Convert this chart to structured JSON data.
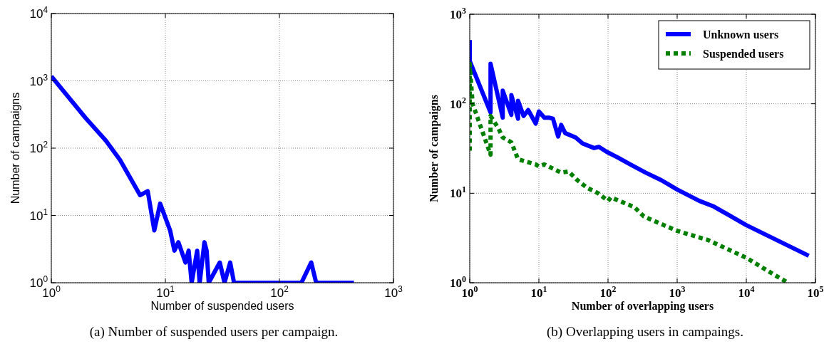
{
  "chart_data": [
    {
      "type": "line",
      "xlabel": "Number of suspended users",
      "ylabel": "Number of campaigns",
      "log": "xy",
      "grid": true,
      "xlim": [
        1,
        1000
      ],
      "ylim": [
        1,
        10000
      ],
      "xticks": [
        {
          "value": 1,
          "label": "10$^{0}$"
        },
        {
          "value": 10,
          "label": "10$^{1}$"
        },
        {
          "value": 100,
          "label": "10$^{2}$"
        },
        {
          "value": 1000,
          "label": "10$^{3}$"
        }
      ],
      "yticks": [
        {
          "value": 1,
          "label": "10$^{0}$"
        },
        {
          "value": 10,
          "label": "10$^{1}$"
        },
        {
          "value": 100,
          "label": "10$^{2}$"
        },
        {
          "value": 1000,
          "label": "10$^{3}$"
        },
        {
          "value": 10000,
          "label": "10$^{4}$"
        }
      ],
      "annotations": [
        "(a) Number of suspended users per campaign."
      ],
      "series": [
        {
          "color": "#0000ff",
          "line_style": "solid",
          "x": [
            1,
            2,
            3,
            4,
            6,
            7,
            8,
            9,
            11,
            12,
            13,
            15,
            16,
            17,
            19,
            20,
            22,
            23,
            24,
            30,
            33,
            37,
            40,
            156,
            190,
            210,
            450
          ],
          "values": [
            1170,
            280,
            130,
            67,
            20,
            23,
            6,
            15,
            6,
            3,
            4,
            2,
            3,
            1,
            3,
            1,
            4,
            3,
            1,
            2,
            1,
            2,
            1,
            1,
            2,
            1,
            1
          ]
        }
      ]
    },
    {
      "type": "line",
      "xlabel": "Number of overlapping users",
      "ylabel": "Number of campaigns",
      "log": "xy",
      "grid": true,
      "legend": "top right",
      "xlim": [
        1,
        100000
      ],
      "ylim": [
        1,
        1000
      ],
      "xticks": [
        {
          "value": 1,
          "label": "10$^{0}$"
        },
        {
          "value": 10,
          "label": "10$^{1}$"
        },
        {
          "value": 100,
          "label": "10$^{2}$"
        },
        {
          "value": 1000,
          "label": "10$^{3}$"
        },
        {
          "value": 10000,
          "label": "10$^{4}$"
        },
        {
          "value": 100000,
          "label": "10$^{5}$"
        }
      ],
      "yticks": [
        {
          "value": 1,
          "label": "10$^{0}$"
        },
        {
          "value": 10,
          "label": "10$^{1}$"
        },
        {
          "value": 100,
          "label": "10$^{2}$"
        },
        {
          "value": 1000,
          "label": "10$^{3}$"
        }
      ],
      "annotations": [
        "(b) Overlapping users in campaings."
      ],
      "series": [
        {
          "name": "Unknown users",
          "color": "#0000ff",
          "line_style": "solid",
          "x": [
            1,
            1,
            2,
            2,
            3,
            3,
            4,
            4,
            5,
            5,
            6,
            7,
            9,
            10,
            12,
            14,
            16,
            19,
            21,
            24,
            34,
            43,
            63,
            74,
            96,
            140,
            210,
            350,
            590,
            1000,
            2100,
            3400,
            10000,
            80000
          ],
          "values": [
            515,
            300,
            80,
            280,
            70,
            140,
            75,
            125,
            68,
            108,
            73,
            85,
            60,
            82,
            70,
            70,
            68,
            43,
            58,
            47,
            42,
            36,
            32,
            33,
            29,
            25,
            21,
            17,
            14,
            11,
            8.2,
            7.1,
            4.4,
            2
          ]
        },
        {
          "name": "Suspended users",
          "color": "#007f00",
          "line_style": "dashed",
          "x": [
            1,
            1,
            1.1,
            2,
            2,
            2.6,
            3,
            4,
            5,
            6,
            9,
            10,
            12,
            21,
            27,
            36,
            50,
            72,
            100,
            110,
            240,
            330,
            1000,
            2800,
            10000,
            24000,
            40000
          ],
          "values": [
            30,
            280,
            100,
            27,
            73,
            53,
            42,
            37,
            24,
            23,
            21,
            20,
            21,
            17,
            17.5,
            14,
            11.5,
            10,
            8.2,
            9,
            7,
            5.5,
            3.8,
            3,
            1.9,
            1.26,
            1
          ]
        }
      ]
    }
  ]
}
